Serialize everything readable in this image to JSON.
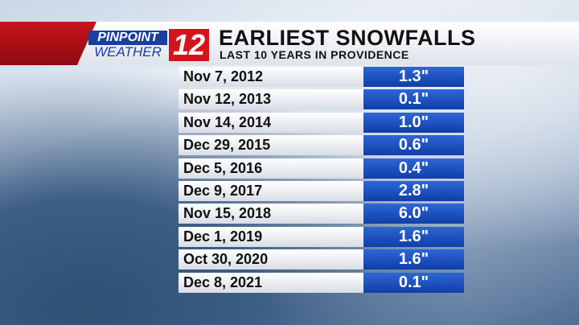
{
  "header": {
    "brand_top": "PINPOINT",
    "brand_bottom": "WEATHER",
    "brand_number": "12",
    "title": "EARLIEST SNOWFALLS",
    "subtitle": "LAST 10 YEARS IN PROVIDENCE"
  },
  "table": {
    "rows": [
      [
        "Nov 7, 2012",
        "1.3\""
      ],
      [
        "Nov 12, 2013",
        "0.1\""
      ],
      [
        "Nov 14, 2014",
        "1.0\""
      ],
      [
        "Dec 29, 2015",
        "0.6\""
      ],
      [
        "Dec 5, 2016",
        "0.4\""
      ],
      [
        "Dec 9, 2017",
        "2.8\""
      ],
      [
        "Nov 15, 2018",
        "6.0\""
      ],
      [
        "Dec 1, 2019",
        "1.6\""
      ],
      [
        "Oct 30, 2020",
        "1.6\""
      ],
      [
        "Dec 8, 2021",
        "0.1\""
      ]
    ]
  }
}
